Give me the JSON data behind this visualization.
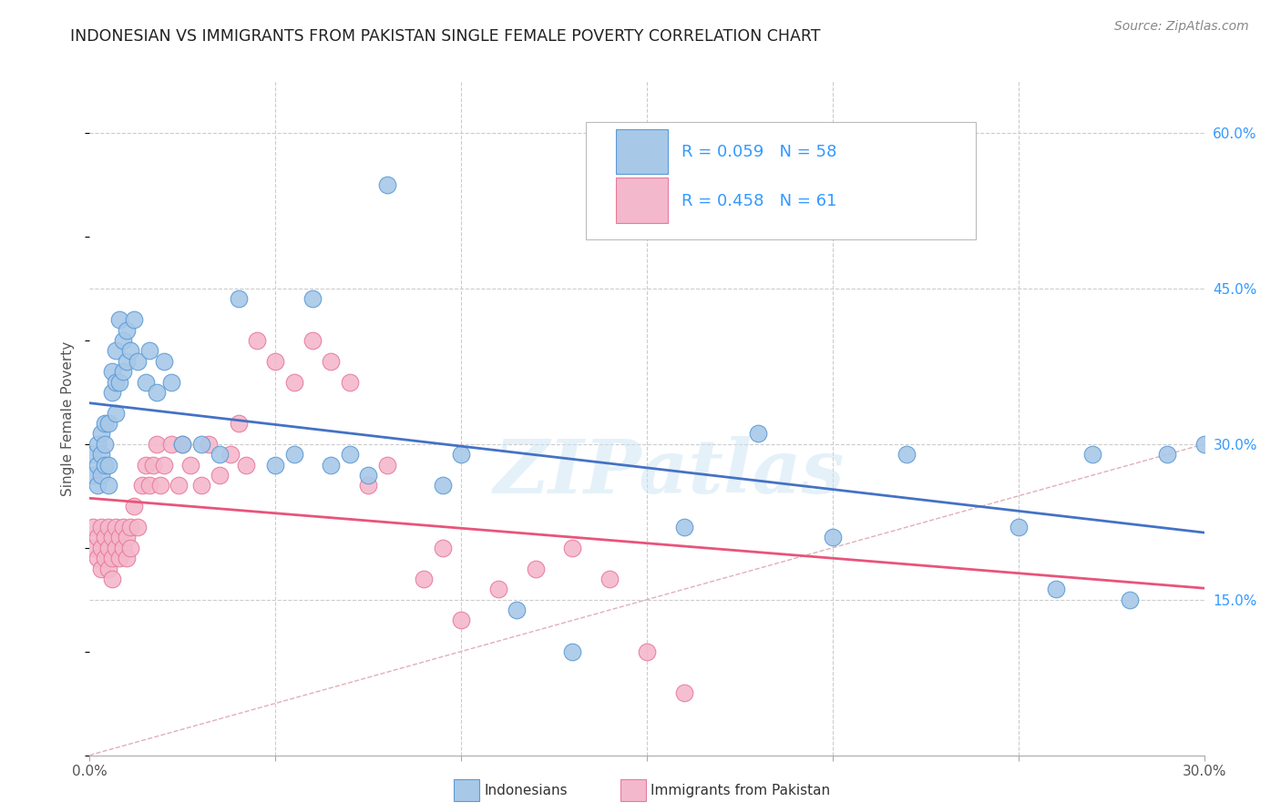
{
  "title": "INDONESIAN VS IMMIGRANTS FROM PAKISTAN SINGLE FEMALE POVERTY CORRELATION CHART",
  "source": "Source: ZipAtlas.com",
  "ylabel": "Single Female Poverty",
  "xlim": [
    0.0,
    0.3
  ],
  "ylim": [
    0.0,
    0.65
  ],
  "color_indonesian": "#a8c8e8",
  "color_indonesian_edge": "#5b9bd5",
  "color_pakistan": "#f4b8cc",
  "color_pakistan_edge": "#e87a9a",
  "color_blue_text": "#3399ff",
  "color_regression_blue": "#4472c4",
  "color_regression_pink": "#e8547a",
  "color_diagonal": "#e0b0b8",
  "watermark": "ZIPatlas",
  "indonesian_x": [
    0.001,
    0.001,
    0.002,
    0.002,
    0.002,
    0.003,
    0.003,
    0.003,
    0.004,
    0.004,
    0.004,
    0.005,
    0.005,
    0.005,
    0.006,
    0.006,
    0.007,
    0.007,
    0.007,
    0.008,
    0.008,
    0.009,
    0.009,
    0.01,
    0.01,
    0.011,
    0.012,
    0.013,
    0.015,
    0.016,
    0.018,
    0.02,
    0.022,
    0.025,
    0.03,
    0.035,
    0.04,
    0.05,
    0.055,
    0.06,
    0.065,
    0.07,
    0.075,
    0.08,
    0.095,
    0.1,
    0.115,
    0.13,
    0.16,
    0.18,
    0.2,
    0.22,
    0.25,
    0.26,
    0.27,
    0.28,
    0.29,
    0.3
  ],
  "indonesian_y": [
    0.27,
    0.29,
    0.26,
    0.28,
    0.3,
    0.27,
    0.29,
    0.31,
    0.28,
    0.3,
    0.32,
    0.26,
    0.28,
    0.32,
    0.35,
    0.37,
    0.33,
    0.36,
    0.39,
    0.36,
    0.42,
    0.37,
    0.4,
    0.38,
    0.41,
    0.39,
    0.42,
    0.38,
    0.36,
    0.39,
    0.35,
    0.38,
    0.36,
    0.3,
    0.3,
    0.29,
    0.44,
    0.28,
    0.29,
    0.44,
    0.28,
    0.29,
    0.27,
    0.55,
    0.26,
    0.29,
    0.14,
    0.1,
    0.22,
    0.31,
    0.21,
    0.29,
    0.22,
    0.16,
    0.29,
    0.15,
    0.29,
    0.3
  ],
  "pakistan_x": [
    0.001,
    0.001,
    0.002,
    0.002,
    0.003,
    0.003,
    0.003,
    0.004,
    0.004,
    0.005,
    0.005,
    0.005,
    0.006,
    0.006,
    0.006,
    0.007,
    0.007,
    0.008,
    0.008,
    0.009,
    0.009,
    0.01,
    0.01,
    0.011,
    0.011,
    0.012,
    0.013,
    0.014,
    0.015,
    0.016,
    0.017,
    0.018,
    0.019,
    0.02,
    0.022,
    0.024,
    0.025,
    0.027,
    0.03,
    0.032,
    0.035,
    0.038,
    0.04,
    0.042,
    0.045,
    0.05,
    0.055,
    0.06,
    0.065,
    0.07,
    0.075,
    0.08,
    0.09,
    0.095,
    0.1,
    0.11,
    0.12,
    0.13,
    0.14,
    0.15,
    0.16
  ],
  "pakistan_y": [
    0.22,
    0.2,
    0.19,
    0.21,
    0.2,
    0.18,
    0.22,
    0.21,
    0.19,
    0.22,
    0.2,
    0.18,
    0.21,
    0.19,
    0.17,
    0.22,
    0.2,
    0.21,
    0.19,
    0.22,
    0.2,
    0.21,
    0.19,
    0.22,
    0.2,
    0.24,
    0.22,
    0.26,
    0.28,
    0.26,
    0.28,
    0.3,
    0.26,
    0.28,
    0.3,
    0.26,
    0.3,
    0.28,
    0.26,
    0.3,
    0.27,
    0.29,
    0.32,
    0.28,
    0.4,
    0.38,
    0.36,
    0.4,
    0.38,
    0.36,
    0.26,
    0.28,
    0.17,
    0.2,
    0.13,
    0.16,
    0.18,
    0.2,
    0.17,
    0.1,
    0.06
  ]
}
